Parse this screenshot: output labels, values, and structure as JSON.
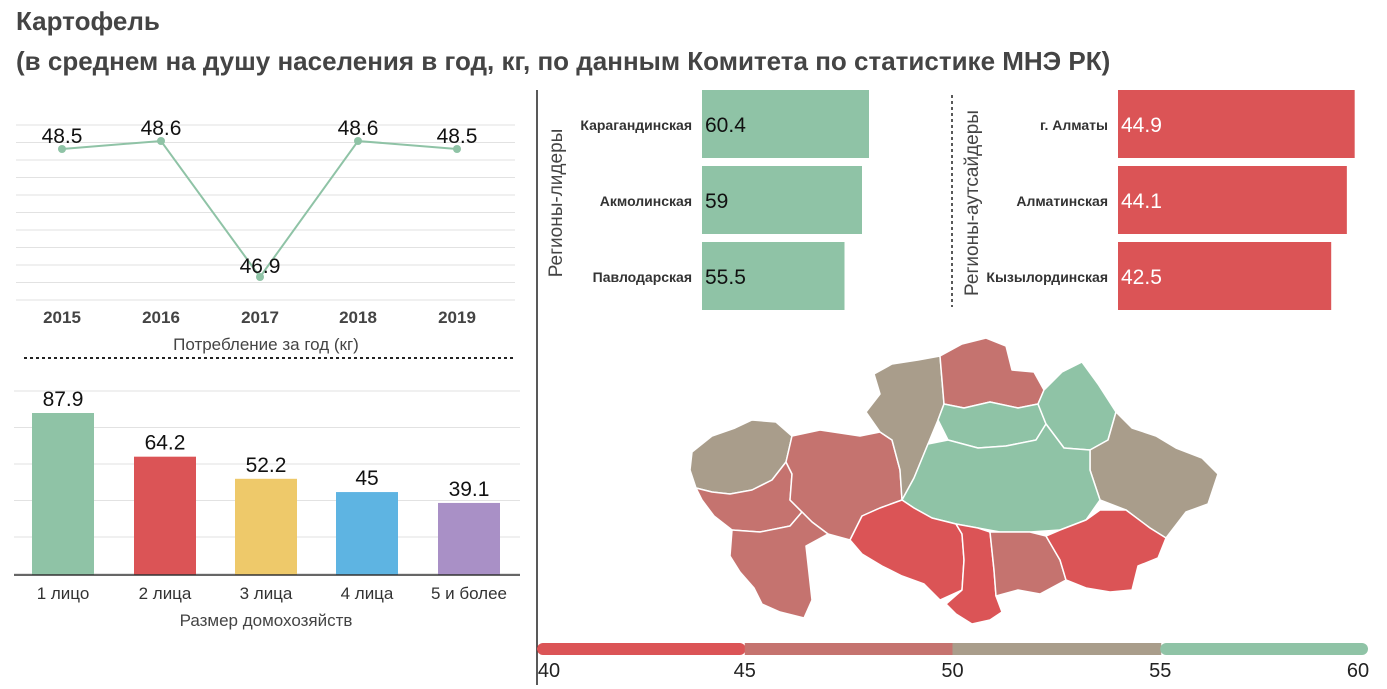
{
  "title_line1": "Картофель",
  "title_line2": "(в среднем на душу населения в год, кг, по данным Комитета по статистике МНЭ РК)",
  "chart_data": [
    {
      "type": "line",
      "x": [
        "2015",
        "2016",
        "2017",
        "2018",
        "2019"
      ],
      "values": [
        48.5,
        48.6,
        46.9,
        48.6,
        48.5
      ],
      "xlabel": "Потребление за год (кг)",
      "ylabel": "",
      "color": "#8fc3a6"
    },
    {
      "type": "bar",
      "categories": [
        "1 лицо",
        "2 лица",
        "3 лица",
        "4 лица",
        "5 и более"
      ],
      "values": [
        87.9,
        64.2,
        52.2,
        45,
        39.1
      ],
      "colors": [
        "#8fc3a6",
        "#db5456",
        "#eec96a",
        "#5eb4e2",
        "#a990c6"
      ],
      "xlabel": "Размер домохозяйств",
      "ylabel": ""
    },
    {
      "type": "bar",
      "orientation": "horizontal",
      "group_label": "Регионы-лидеры",
      "categories": [
        "Карагандинская",
        "Акмолинская",
        "Павлодарская"
      ],
      "values": [
        60.4,
        59,
        55.5
      ],
      "color": "#8fc3a6"
    },
    {
      "type": "bar",
      "orientation": "horizontal",
      "group_label": "Регионы-аутсайдеры",
      "categories": [
        "г. Алматы",
        "Алматинская",
        "Кызылординская"
      ],
      "values": [
        44.9,
        44.1,
        42.5
      ],
      "color": "#db5456"
    }
  ],
  "legend_scale": {
    "ticks": [
      "40",
      "45",
      "50",
      "55",
      "60"
    ],
    "colors": [
      "#db5456",
      "#c5736f",
      "#a99d8b",
      "#8fc3a6"
    ]
  },
  "map": {
    "colors": {
      "green": "#8fc3a6",
      "beige": "#a99d8b",
      "rose": "#c5736f",
      "red": "#db5456"
    }
  }
}
